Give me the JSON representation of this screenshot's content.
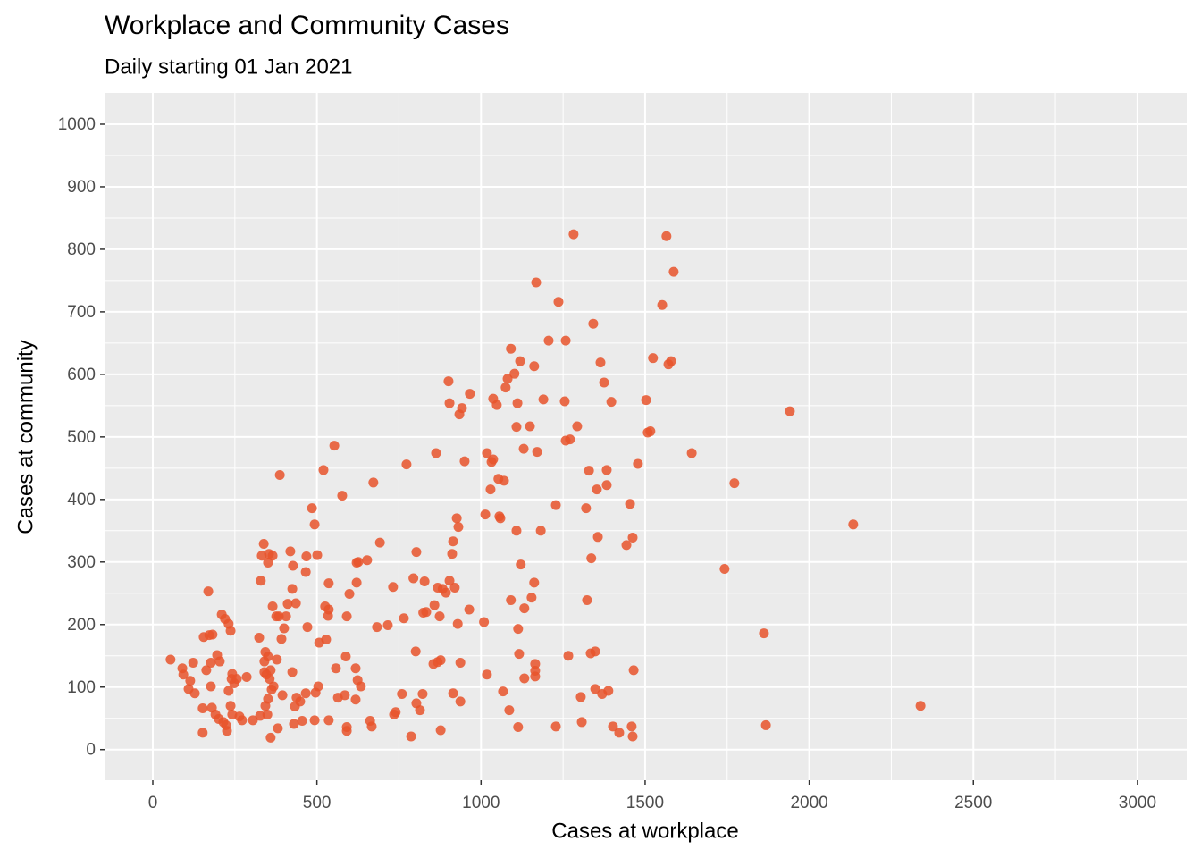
{
  "chart_data": {
    "type": "scatter",
    "title": "Workplace and Community Cases",
    "subtitle": "Daily starting 01 Jan 2021",
    "xlabel": "Cases at workplace",
    "ylabel": "Cases at community",
    "color": "#e8532c",
    "grid": true,
    "xlim": [
      -147,
      3150
    ],
    "ylim": [
      -49,
      1050
    ],
    "xticks": [
      0,
      500,
      1000,
      1500,
      2000,
      2500,
      3000
    ],
    "yticks": [
      0,
      100,
      200,
      300,
      400,
      500,
      600,
      700,
      800,
      900,
      1000
    ],
    "x": [
      54,
      90,
      93,
      123,
      114,
      109,
      128,
      152,
      152,
      155,
      169,
      172,
      182,
      163,
      177,
      177,
      180,
      196,
      204,
      191,
      210,
      220,
      231,
      237,
      201,
      215,
      223,
      226,
      231,
      240,
      242,
      248,
      256,
      237,
      242,
      264,
      272,
      286,
      305,
      327,
      349,
      324,
      329,
      332,
      338,
      354,
      365,
      351,
      340,
      343,
      340,
      346,
      351,
      359,
      356,
      343,
      351,
      362,
      368,
      365,
      376,
      384,
      359,
      381,
      395,
      378,
      392,
      387,
      400,
      411,
      406,
      419,
      427,
      425,
      436,
      425,
      433,
      430,
      438,
      449,
      455,
      468,
      466,
      471,
      466,
      485,
      493,
      501,
      493,
      504,
      507,
      496,
      520,
      525,
      534,
      536,
      528,
      536,
      536,
      553,
      558,
      564,
      577,
      585,
      588,
      591,
      591,
      591,
      599,
      618,
      621,
      621,
      626,
      624,
      618,
      634,
      653,
      662,
      667,
      672,
      683,
      692,
      716,
      732,
      735,
      740,
      759,
      765,
      773,
      787,
      794,
      801,
      803,
      803,
      814,
      822,
      824,
      833,
      828,
      858,
      855,
      863,
      868,
      877,
      874,
      883,
      868,
      877,
      893,
      901,
      904,
      904,
      912,
      915,
      915,
      920,
      926,
      931,
      929,
      934,
      937,
      937,
      942,
      950,
      964,
      966,
      1009,
      1013,
      1018,
      1018,
      1032,
      1029,
      1037,
      1037,
      1048,
      1053,
      1056,
      1059,
      1070,
      1067,
      1075,
      1081,
      1086,
      1091,
      1091,
      1102,
      1108,
      1108,
      1111,
      1116,
      1113,
      1119,
      1113,
      1121,
      1132,
      1132,
      1130,
      1149,
      1154,
      1162,
      1165,
      1165,
      1165,
      1162,
      1168,
      1171,
      1182,
      1190,
      1206,
      1228,
      1228,
      1236,
      1255,
      1258,
      1258,
      1266,
      1271,
      1282,
      1293,
      1304,
      1307,
      1320,
      1323,
      1329,
      1336,
      1334,
      1342,
      1348,
      1348,
      1353,
      1356,
      1364,
      1369,
      1375,
      1383,
      1383,
      1388,
      1397,
      1402,
      1421,
      1443,
      1454,
      1462,
      1465,
      1459,
      1462,
      1478,
      1503,
      1508,
      1516,
      1524,
      1552,
      1565,
      1571,
      1579,
      1587,
      1642,
      1742,
      1772,
      1862,
      1868,
      1941,
      2134,
      2339
    ],
    "values": [
      144,
      130,
      120,
      139,
      110,
      97,
      90,
      66,
      27,
      180,
      253,
      183,
      184,
      127,
      139,
      101,
      67,
      151,
      141,
      56,
      216,
      209,
      201,
      190,
      49,
      44,
      39,
      30,
      94,
      113,
      121,
      106,
      113,
      70,
      56,
      53,
      47,
      116,
      47,
      54,
      56,
      179,
      270,
      310,
      329,
      313,
      310,
      299,
      141,
      156,
      124,
      120,
      149,
      127,
      113,
      70,
      81,
      96,
      101,
      229,
      213,
      213,
      19,
      34,
      87,
      144,
      177,
      439,
      194,
      233,
      213,
      317,
      294,
      257,
      234,
      124,
      69,
      41,
      83,
      77,
      46,
      309,
      284,
      196,
      90,
      386,
      360,
      311,
      47,
      101,
      171,
      91,
      447,
      229,
      214,
      266,
      176,
      47,
      224,
      486,
      130,
      83,
      406,
      87,
      149,
      213,
      36,
      30,
      249,
      130,
      267,
      299,
      300,
      111,
      80,
      101,
      303,
      46,
      37,
      427,
      196,
      331,
      199,
      260,
      56,
      60,
      89,
      210,
      456,
      21,
      274,
      157,
      316,
      74,
      63,
      89,
      219,
      220,
      269,
      231,
      137,
      474,
      140,
      143,
      213,
      257,
      259,
      31,
      251,
      589,
      554,
      270,
      313,
      333,
      90,
      259,
      370,
      356,
      201,
      536,
      139,
      77,
      546,
      461,
      224,
      569,
      204,
      376,
      120,
      474,
      460,
      416,
      464,
      561,
      551,
      433,
      373,
      370,
      430,
      93,
      579,
      593,
      63,
      641,
      239,
      601,
      350,
      516,
      554,
      153,
      36,
      621,
      193,
      296,
      114,
      226,
      481,
      517,
      243,
      613,
      137,
      126,
      117,
      267,
      747,
      476,
      350,
      560,
      654,
      391,
      37,
      716,
      557,
      654,
      494,
      150,
      496,
      824,
      517,
      84,
      44,
      386,
      239,
      446,
      306,
      154,
      681,
      97,
      157,
      416,
      340,
      619,
      89,
      587,
      447,
      423,
      94,
      556,
      37,
      27,
      327,
      393,
      339,
      127,
      37,
      21,
      457,
      559,
      507,
      509,
      626,
      711,
      821,
      616,
      621,
      764,
      474,
      289,
      426,
      186,
      39,
      541,
      360,
      70
    ]
  }
}
